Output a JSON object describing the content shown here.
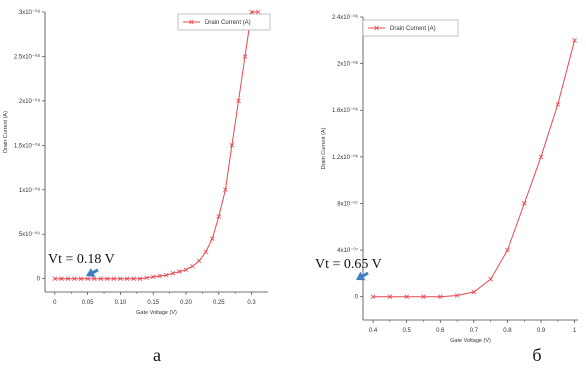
{
  "colors": {
    "series": "#e8474f",
    "axis": "#444444",
    "arrow": "#3f7fc0"
  },
  "chart_data": [
    {
      "type": "line",
      "panel_label": "a",
      "xlabel": "Gate Voltage (V)",
      "ylabel": "Drain Current (A)",
      "xlim": [
        -0.015,
        0.325
      ],
      "ylim": [
        -1.5e-09,
        3e-08
      ],
      "x_ticks": [
        0,
        0.05,
        0.1,
        0.15,
        0.2,
        0.25,
        0.3
      ],
      "x_tick_labels": [
        "0",
        "0.05",
        "0.10",
        "0.15",
        "0.20",
        "0.25",
        "0.3"
      ],
      "y_ticks": [
        0,
        5e-09,
        1e-08,
        1.5e-08,
        2e-08,
        2.5e-08,
        3e-08
      ],
      "y_tick_labels": [
        "0",
        "5x10⁻⁰⁹",
        "1x10⁻⁰⁸",
        "1.5x10⁻⁰⁸",
        "2x10⁻⁰⁸",
        "2.5x10⁻⁰⁸",
        "3x10⁻⁰⁸"
      ],
      "legend": {
        "position": "top-right",
        "label": "Drain Current (A)"
      },
      "series": [
        {
          "name": "Drain Current (A)",
          "x": [
            0,
            0.01,
            0.02,
            0.03,
            0.04,
            0.05,
            0.06,
            0.07,
            0.08,
            0.09,
            0.1,
            0.11,
            0.12,
            0.13,
            0.14,
            0.15,
            0.16,
            0.17,
            0.18,
            0.19,
            0.2,
            0.21,
            0.22,
            0.23,
            0.24,
            0.25,
            0.26,
            0.27,
            0.28,
            0.29,
            0.3,
            0.31
          ],
          "y": [
            0,
            0,
            0,
            0,
            0,
            0,
            0,
            0,
            0,
            0,
            0,
            0,
            0,
            0,
            1e-10,
            2e-10,
            3e-10,
            4e-10,
            6e-10,
            8e-10,
            1e-09,
            1.4e-09,
            2e-09,
            3e-09,
            4.5e-09,
            7e-09,
            1e-08,
            1.5e-08,
            2e-08,
            2.5e-08,
            3e-08,
            3e-08
          ]
        }
      ],
      "annotation": {
        "text": "Vt = 0.18 V",
        "x": 0.18,
        "y": 0
      }
    },
    {
      "type": "line",
      "panel_label": "б",
      "xlabel": "Gate Voltage (V)",
      "ylabel": "Drain Current (A)",
      "xlim": [
        0.37,
        1.01
      ],
      "ylim": [
        -2e-07,
        2.4e-06
      ],
      "x_ticks": [
        0.4,
        0.5,
        0.6,
        0.7,
        0.8,
        0.9,
        1.0
      ],
      "x_tick_labels": [
        "0.4",
        "0.5",
        "0.6",
        "0.7",
        "0.8",
        "0.9",
        "1"
      ],
      "y_ticks": [
        0,
        4e-07,
        8e-07,
        1.2e-06,
        1.6e-06,
        2e-06,
        2.4e-06
      ],
      "y_tick_labels": [
        "0",
        "4x10⁻⁰⁷",
        "8x10⁻⁰⁷",
        "1.2x10⁻⁰⁶",
        "1.6x10⁻⁰⁶",
        "2x10⁻⁰⁶",
        "2.4x10⁻⁰⁶"
      ],
      "legend": {
        "position": "top-left",
        "label": "Drain Current (A)"
      },
      "series": [
        {
          "name": "Drain Current (A)",
          "x": [
            0.4,
            0.45,
            0.5,
            0.55,
            0.6,
            0.65,
            0.7,
            0.75,
            0.8,
            0.85,
            0.9,
            0.95,
            1.0
          ],
          "y": [
            0,
            0,
            0,
            0,
            0,
            1e-08,
            4e-08,
            1.5e-07,
            4e-07,
            8e-07,
            1.2e-06,
            1.65e-06,
            2.2e-06
          ]
        }
      ],
      "annotation": {
        "text": "Vt = 0.65 V",
        "x": 0.65,
        "y": 0
      }
    }
  ]
}
